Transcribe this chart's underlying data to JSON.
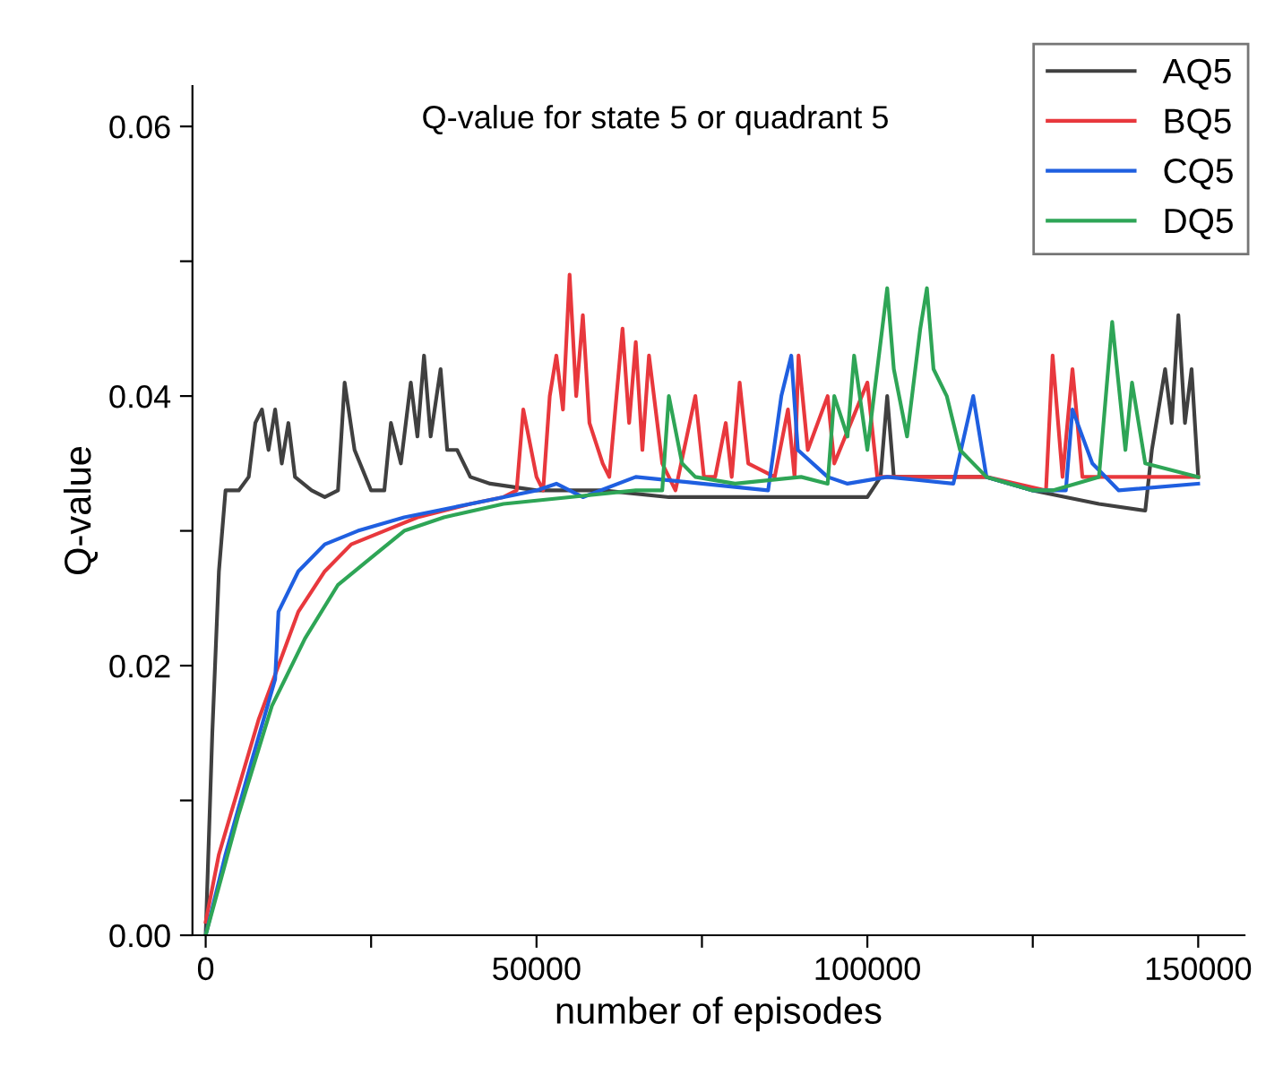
{
  "chart_data": {
    "type": "line",
    "title": "Q-value for state 5 or quadrant 5",
    "xlabel": "number of episodes",
    "ylabel": "Q-value",
    "xlim": [
      -2000,
      157000
    ],
    "ylim": [
      0,
      0.063
    ],
    "xticks": [
      0,
      {
        "value": 25000,
        "label": null
      },
      50000,
      {
        "value": 75000,
        "label": null
      },
      100000,
      {
        "value": 125000,
        "label": null
      },
      150000
    ],
    "yticks": [
      {
        "value": 0,
        "label": "0.00"
      },
      {
        "value": 0.01,
        "label": null
      },
      {
        "value": 0.02,
        "label": "0.02"
      },
      {
        "value": 0.03,
        "label": null
      },
      {
        "value": 0.04,
        "label": "0.04"
      },
      {
        "value": 0.05,
        "label": null
      },
      {
        "value": 0.06,
        "label": "0.06"
      }
    ],
    "legend": "top right",
    "grid": false,
    "line_style": "solid",
    "marker": "none",
    "series": [
      {
        "name": "AQ5",
        "color": "#404040",
        "x": [
          0,
          1000,
          2000,
          3000,
          5000,
          6500,
          7500,
          8500,
          9500,
          10500,
          11500,
          12500,
          13500,
          16000,
          18000,
          20000,
          21000,
          22500,
          25000,
          27000,
          28000,
          29500,
          31000,
          32000,
          33000,
          34000,
          35500,
          36500,
          38000,
          40000,
          43000,
          50000,
          60000,
          70000,
          80000,
          90000,
          100000,
          102000,
          103000,
          104000,
          110000,
          118000,
          125000,
          135000,
          142000,
          143000,
          145000,
          146000,
          147000,
          148000,
          149000,
          150000
        ],
        "values": [
          0,
          0.015,
          0.027,
          0.033,
          0.033,
          0.034,
          0.038,
          0.039,
          0.036,
          0.039,
          0.035,
          0.038,
          0.034,
          0.033,
          0.0325,
          0.033,
          0.041,
          0.036,
          0.033,
          0.033,
          0.038,
          0.035,
          0.041,
          0.037,
          0.043,
          0.037,
          0.042,
          0.036,
          0.036,
          0.034,
          0.0335,
          0.033,
          0.033,
          0.0325,
          0.0325,
          0.0325,
          0.0325,
          0.034,
          0.04,
          0.034,
          0.034,
          0.034,
          0.033,
          0.032,
          0.0315,
          0.036,
          0.042,
          0.038,
          0.046,
          0.038,
          0.042,
          0.034
        ]
      },
      {
        "name": "BQ5",
        "color": "#e8383d",
        "x": [
          0,
          2000,
          5000,
          8000,
          11000,
          14000,
          18000,
          22000,
          27000,
          32000,
          40000,
          45000,
          47000,
          48000,
          50000,
          51000,
          52000,
          53000,
          54000,
          55000,
          56000,
          57000,
          58000,
          60000,
          61000,
          63000,
          64000,
          65000,
          66000,
          67000,
          69000,
          71000,
          74000,
          75300,
          77000,
          78600,
          79500,
          80700,
          82000,
          86000,
          88000,
          89000,
          89600,
          91000,
          94000,
          95000,
          100000,
          101500,
          105000,
          118000,
          127000,
          128000,
          129500,
          131000,
          132500,
          140000,
          150000
        ],
        "values": [
          0.001,
          0.006,
          0.011,
          0.016,
          0.02,
          0.024,
          0.027,
          0.029,
          0.03,
          0.031,
          0.032,
          0.0325,
          0.033,
          0.039,
          0.034,
          0.033,
          0.04,
          0.043,
          0.039,
          0.049,
          0.04,
          0.046,
          0.038,
          0.035,
          0.034,
          0.045,
          0.038,
          0.044,
          0.036,
          0.043,
          0.035,
          0.033,
          0.04,
          0.034,
          0.034,
          0.038,
          0.034,
          0.041,
          0.035,
          0.034,
          0.039,
          0.034,
          0.043,
          0.036,
          0.04,
          0.035,
          0.041,
          0.034,
          0.034,
          0.034,
          0.033,
          0.043,
          0.034,
          0.042,
          0.034,
          0.034,
          0.034
        ]
      },
      {
        "name": "CQ5",
        "color": "#1f5fe0",
        "x": [
          0,
          3000,
          7000,
          10500,
          11000,
          14000,
          18000,
          23000,
          30000,
          40000,
          50000,
          53000,
          57000,
          65000,
          75000,
          85000,
          87000,
          88500,
          89500,
          94000,
          97000,
          103000,
          113000,
          116000,
          118000,
          125000,
          130000,
          131000,
          134000,
          138000,
          150000
        ],
        "values": [
          0,
          0.006,
          0.013,
          0.019,
          0.024,
          0.027,
          0.029,
          0.03,
          0.031,
          0.032,
          0.033,
          0.0335,
          0.0325,
          0.034,
          0.0335,
          0.033,
          0.04,
          0.043,
          0.036,
          0.034,
          0.0335,
          0.034,
          0.0335,
          0.04,
          0.034,
          0.033,
          0.033,
          0.039,
          0.035,
          0.033,
          0.0335
        ]
      },
      {
        "name": "DQ5",
        "color": "#2ea556",
        "x": [
          0,
          5000,
          10000,
          15000,
          20000,
          25000,
          30000,
          36000,
          45000,
          55000,
          65000,
          69000,
          70000,
          72000,
          74000,
          80000,
          90000,
          94000,
          95000,
          97000,
          98000,
          100000,
          101000,
          103000,
          104000,
          106000,
          108000,
          109000,
          110000,
          112000,
          114000,
          118000,
          125000,
          128000,
          135000,
          137000,
          139000,
          140000,
          142000,
          150000
        ],
        "values": [
          0,
          0.009,
          0.017,
          0.022,
          0.026,
          0.028,
          0.03,
          0.031,
          0.032,
          0.0325,
          0.033,
          0.033,
          0.04,
          0.035,
          0.034,
          0.0335,
          0.034,
          0.0335,
          0.04,
          0.037,
          0.043,
          0.036,
          0.04,
          0.048,
          0.042,
          0.037,
          0.045,
          0.048,
          0.042,
          0.04,
          0.036,
          0.034,
          0.033,
          0.033,
          0.034,
          0.0455,
          0.036,
          0.041,
          0.035,
          0.034
        ]
      }
    ]
  }
}
